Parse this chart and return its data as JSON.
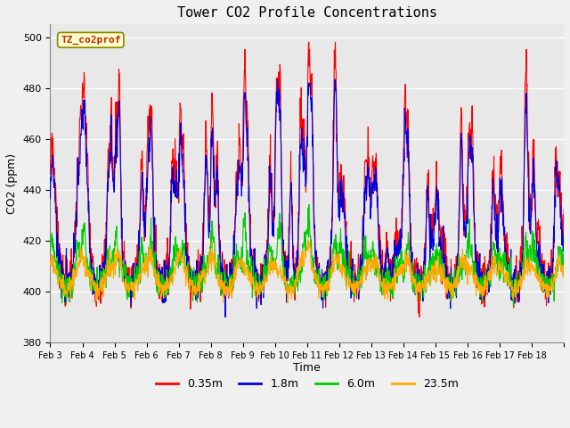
{
  "title": "Tower CO2 Profile Concentrations",
  "xlabel": "Time",
  "ylabel": "CO2 (ppm)",
  "ylim": [
    380,
    505
  ],
  "yticks": [
    380,
    400,
    420,
    440,
    460,
    480,
    500
  ],
  "label_text": "TZ_co2prof",
  "series": [
    "0.35m",
    "1.8m",
    "6.0m",
    "23.5m"
  ],
  "colors": [
    "#ff0000",
    "#0000dd",
    "#00cc00",
    "#ffaa00"
  ],
  "background_color": "#e8e8e8",
  "n_days": 16,
  "xtick_labels": [
    "Feb 3",
    "Feb 4",
    "Feb 5",
    "Feb 6",
    "Feb 7",
    "Feb 8",
    "Feb 9",
    "Feb 10",
    "Feb 11",
    "Feb 12",
    "Feb 13",
    "Feb 14",
    "Feb 15",
    "Feb 16",
    "Feb 17",
    "Feb 18"
  ],
  "fig_width": 6.4,
  "fig_height": 4.8,
  "dpi": 100
}
